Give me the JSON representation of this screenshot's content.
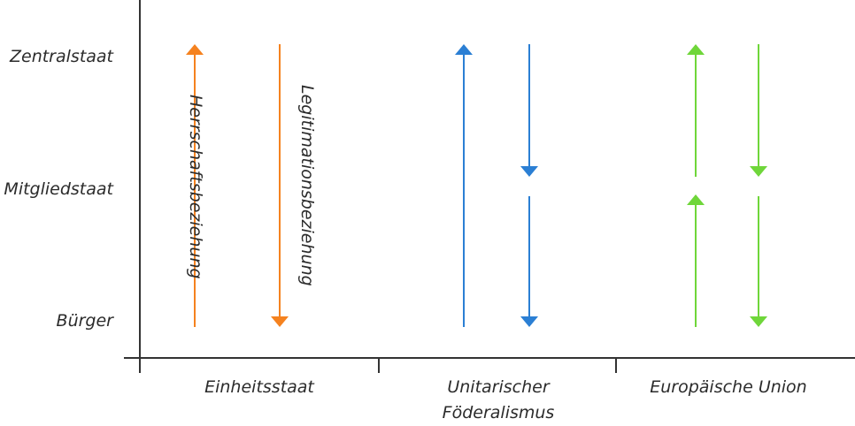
{
  "levels": {
    "top": "Zentralstaat",
    "middle": "Mitgliedstaat",
    "bottom": "Bürger"
  },
  "models": [
    {
      "name_line1": "Einheitsstaat",
      "name_line2": "",
      "color": "#f5821f"
    },
    {
      "name_line1": "Unitarischer",
      "name_line2": "Föderalismus",
      "color": "#2b7fd4"
    },
    {
      "name_line1": "Europäische Union",
      "name_line2": "",
      "color": "#6fd63a"
    }
  ],
  "arrow_labels": {
    "rule": "Herrschaftsbeziehung",
    "legitimation": "Legitimationsbeziehung"
  },
  "colors": {
    "axis": "#333333",
    "text": "#2b2b2b"
  }
}
